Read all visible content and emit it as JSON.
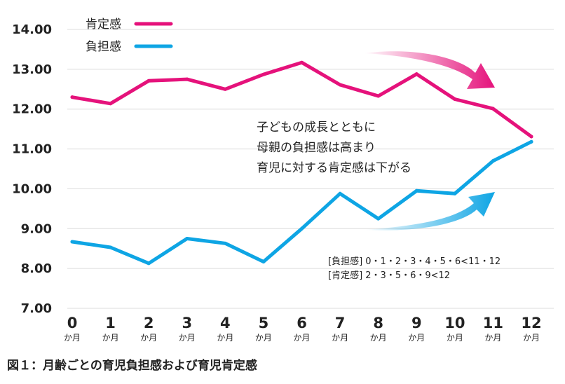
{
  "chart_data": {
    "type": "line",
    "x": [
      "0",
      "1",
      "2",
      "3",
      "4",
      "5",
      "6",
      "7",
      "8",
      "9",
      "10",
      "11",
      "12"
    ],
    "x_unit": "か月",
    "ylim": [
      7.0,
      14.0
    ],
    "yticks": [
      "7.00",
      "8.00",
      "9.00",
      "10.00",
      "11.00",
      "12.00",
      "13.00",
      "14.00"
    ],
    "grid": true,
    "legend_position": "top-left",
    "series": [
      {
        "name": "肯定感",
        "color": "#e5127b",
        "values": [
          12.3,
          12.14,
          12.71,
          12.75,
          12.5,
          12.87,
          13.17,
          12.61,
          12.33,
          12.88,
          12.25,
          12.01,
          11.31
        ]
      },
      {
        "name": "負担感",
        "color": "#0ea5e4",
        "values": [
          8.67,
          8.53,
          8.13,
          8.75,
          8.63,
          8.17,
          9.0,
          9.88,
          9.25,
          9.95,
          9.88,
          10.7,
          11.18
        ]
      }
    ],
    "annotation_lines": [
      "子どもの成長とともに",
      "母親の負担感は高まり",
      "育児に対する肯定感は下がる"
    ],
    "notes": [
      "[負担感] 0・1・2・3・4・5・6<11・12",
      "[肯定感] 2・3・5・6・9<12"
    ],
    "caption": "図１：月齢ごとの育児負担感および育児肯定感"
  }
}
